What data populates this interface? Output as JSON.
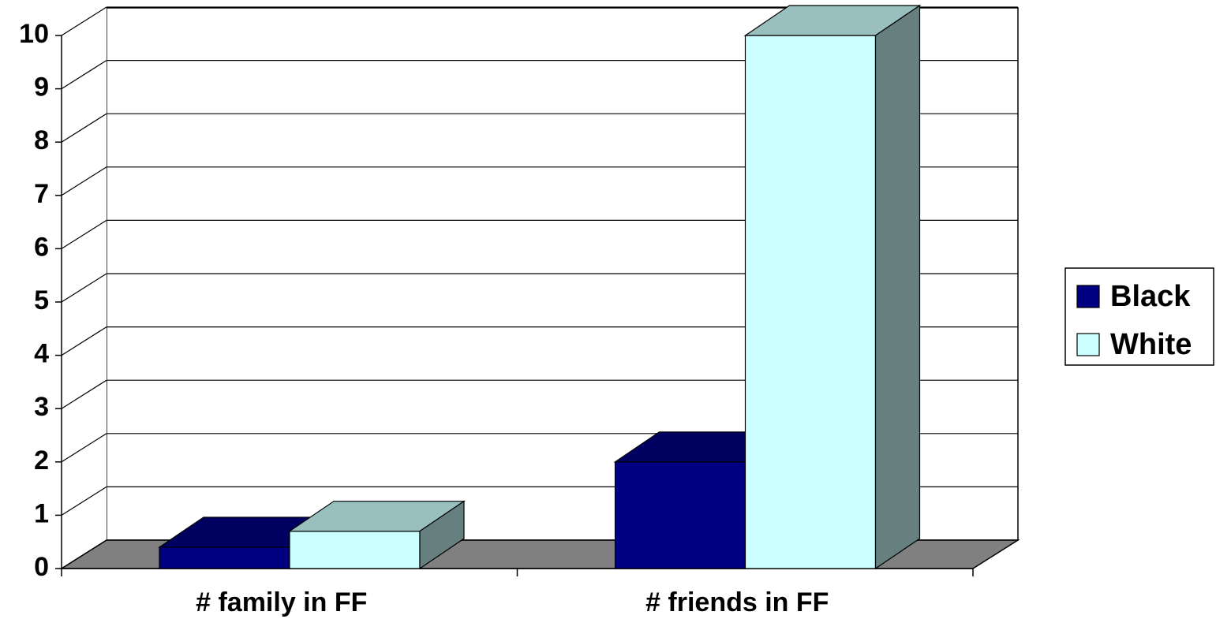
{
  "chart_data": {
    "type": "bar3d",
    "categories": [
      "# family in FF",
      "# friends in FF"
    ],
    "series": [
      {
        "name": "Black",
        "color": "#000080",
        "values": [
          0.4,
          2
        ]
      },
      {
        "name": "White",
        "color": "#ccffff",
        "values": [
          0.7,
          10
        ]
      }
    ],
    "ylim": [
      0,
      10
    ],
    "yticks": [
      0,
      1,
      2,
      3,
      4,
      5,
      6,
      7,
      8,
      9,
      10
    ],
    "grid": true,
    "legend": "right"
  }
}
